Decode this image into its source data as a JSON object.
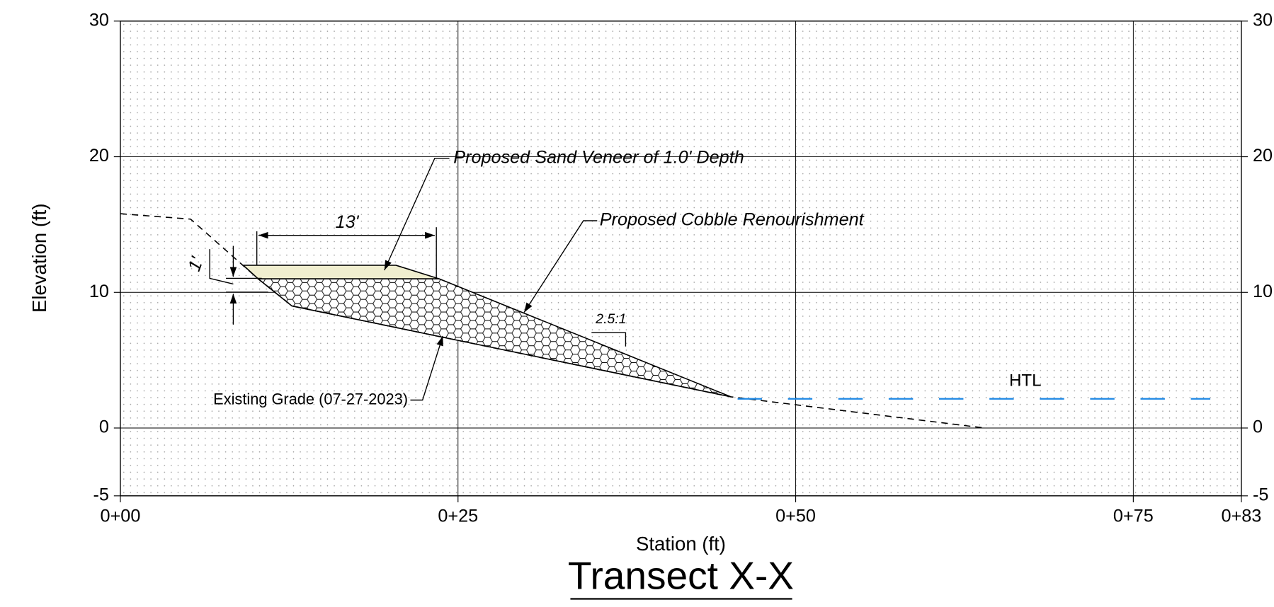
{
  "chart_data": {
    "type": "section",
    "title": "Transect X-X",
    "xlabel": "Station (ft)",
    "ylabel": "Elevation (ft)",
    "xlim": [
      0,
      83
    ],
    "ylim": [
      -5,
      30
    ],
    "xticks": [
      {
        "value": 0,
        "label": "0+00"
      },
      {
        "value": 25,
        "label": "0+25"
      },
      {
        "value": 50,
        "label": "0+50"
      },
      {
        "value": 75,
        "label": "0+75"
      },
      {
        "value": 83,
        "label": "0+83"
      }
    ],
    "yticks": [
      -5,
      0,
      10,
      20,
      30
    ],
    "grid": true,
    "series": [
      {
        "name": "Existing Grade (07-27-2023)",
        "kind": "line",
        "color": "#000000",
        "x": [
          0,
          5.2,
          10.2,
          12.7,
          24.8,
          45.2,
          64.0
        ],
        "values": [
          15.8,
          15.4,
          11.0,
          9.0,
          6.5,
          2.3,
          0.0
        ]
      },
      {
        "name": "Proposed Sand Veneer of 1.0' Depth",
        "kind": "area",
        "color": "#f0eecf",
        "x": [
          9.1,
          20.4,
          23.6,
          10.2
        ],
        "values": [
          12.0,
          12.0,
          11.0,
          11.0
        ]
      },
      {
        "name": "Proposed Cobble Renourishment",
        "kind": "hatch",
        "color": "#000000",
        "x": [
          10.2,
          23.6,
          45.2,
          24.8,
          12.7
        ],
        "values": [
          11.0,
          11.0,
          2.3,
          6.5,
          9.0
        ]
      },
      {
        "name": "HTL",
        "kind": "line",
        "color": "#1e88e5",
        "x": [
          45.7,
          80.7
        ],
        "values": [
          2.15,
          2.15
        ]
      }
    ],
    "annotations": [
      "13'",
      "1'",
      "2.5:1"
    ]
  }
}
